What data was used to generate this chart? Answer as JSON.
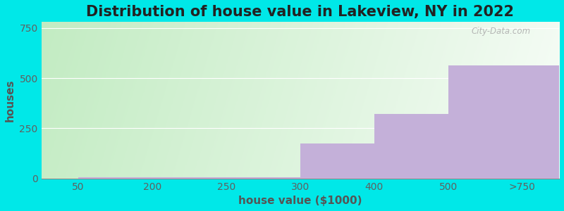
{
  "title": "Distribution of house value in Lakeview, NY in 2022",
  "xlabel": "house value ($1000)",
  "ylabel": "houses",
  "categories": [
    "50",
    "200",
    "250",
    "300",
    "400",
    "500",
    ">750"
  ],
  "values": [
    6,
    6,
    6,
    175,
    320,
    565,
    565
  ],
  "bar_color": "#c4b0d9",
  "fig_bg": "#00e8e8",
  "yticks": [
    0,
    250,
    500,
    750
  ],
  "ylim": [
    0,
    780
  ],
  "title_fontsize": 15,
  "label_fontsize": 11,
  "tick_fontsize": 10,
  "watermark": "City-Data.com"
}
